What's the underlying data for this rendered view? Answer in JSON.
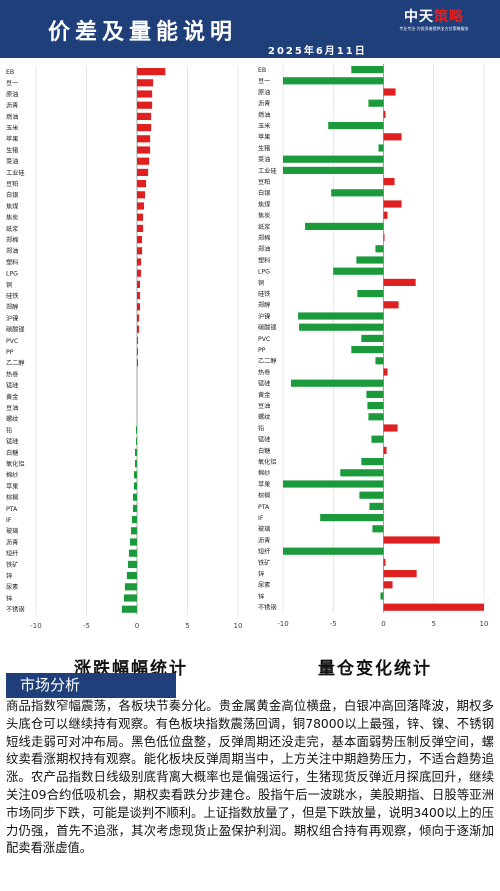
{
  "header": {
    "title": "价差及量能说明",
    "date": "2025年6月11日"
  },
  "logo": {
    "text_a": "中天",
    "text_b": "策略",
    "tagline": "专业专注·为投资者提供全方位策略服务"
  },
  "captions": {
    "left": "涨跌幅幅统计",
    "right": "量仓变化统计"
  },
  "analysis": {
    "heading": "市场分析",
    "body": "商品指数窄幅震荡，各板块节奏分化。贵金属黄金高位横盘，白银冲高回落降波，期权多头底仓可以继续持有观察。有色板块指数震荡回调，铜78000以上最强，锌、镍、不锈钢短线走弱可对冲布局。黑色低位盘整，反弹周期还没走完，基本面弱势压制反弹空间，螺纹卖看涨期权持有观察。能化板块反弹周期当中，上方关注中期趋势压力，不适合趋势追涨。农产品指数日线级别底背离大概率也是偏强运行，生猪现货反弹近月探底回升，继续关注09合约低吸机会，期权卖看跌分步建仓。股指午后一波跳水，美股期指、日股等亚洲市场同步下跌，可能是谈判不顺利。上证指数放量了，但是下跌放量，说明3400以上的压力仍强，首先不追涨，其次考虑现货止盈保护利润。期权组合持有再观察，倾向于逐渐加配卖看涨虚值。"
  },
  "colors": {
    "header": "#1f3f7a",
    "up": "#e02020",
    "down": "#1a9a3a"
  },
  "chart_data": [
    {
      "type": "bar",
      "orientation": "horizontal",
      "caption": "涨跌幅幅统计",
      "categories": [
        "EB",
        "豆一",
        "原油",
        "沥青",
        "燃油",
        "玉米",
        "苹果",
        "生猪",
        "菜油",
        "工业硅",
        "豆粕",
        "白银",
        "焦煤",
        "焦炭",
        "纸浆",
        "郑棉",
        "郑油",
        "塑料",
        "LPG",
        "铜",
        "硅铁",
        "郑醇",
        "沪镍",
        "碳酸锂",
        "PVC",
        "PP",
        "乙二醇",
        "热卷",
        "锰硅",
        "黄金",
        "豆油",
        "螺纹",
        "铅",
        "锰硅",
        "白糖",
        "氧化铝",
        "棉纱",
        "苹果",
        "棕榈",
        "PTA",
        "IF",
        "玻璃",
        "沥青",
        "短纤",
        "铁矿",
        "锌",
        "尿素",
        "锌",
        "不锈钢"
      ],
      "values": [
        2.8,
        1.6,
        1.5,
        1.5,
        1.4,
        1.4,
        1.3,
        1.3,
        1.2,
        1.1,
        0.9,
        0.8,
        0.7,
        0.6,
        0.6,
        0.5,
        0.5,
        0.4,
        0.4,
        0.3,
        0.3,
        0.3,
        0.2,
        0.2,
        0.1,
        0.1,
        0.1,
        0,
        0,
        0,
        0,
        0,
        -0.1,
        -0.1,
        -0.2,
        -0.2,
        -0.3,
        -0.3,
        -0.4,
        -0.4,
        -0.5,
        -0.6,
        -0.7,
        -0.8,
        -0.9,
        -1.0,
        -1.2,
        -1.3,
        -1.5
      ],
      "xlim": [
        -10,
        10
      ],
      "xticks": [
        "-10",
        "-5",
        "0",
        "5",
        "10"
      ]
    },
    {
      "type": "bar",
      "orientation": "horizontal",
      "caption": "量仓变化统计",
      "categories": [
        "EB",
        "豆一",
        "原油",
        "沥青",
        "燃油",
        "玉米",
        "苹果",
        "生猪",
        "菜油",
        "工业硅",
        "豆粕",
        "白银",
        "焦煤",
        "焦炭",
        "纸浆",
        "郑棉",
        "郑油",
        "塑料",
        "LPG",
        "铜",
        "硅铁",
        "郑醇",
        "沪镍",
        "碳酸锂",
        "PVC",
        "PP",
        "乙二醇",
        "热卷",
        "锰硅",
        "黄金",
        "豆油",
        "螺纹",
        "铅",
        "锰硅",
        "白糖",
        "氧化铝",
        "棉纱",
        "苹果",
        "棕榈",
        "PTA",
        "IF",
        "玻璃",
        "沥青",
        "短纤",
        "铁矿",
        "锌",
        "尿素",
        "锌",
        "不锈钢"
      ],
      "values": [
        -3.2,
        -10,
        1.2,
        -1.5,
        0.2,
        -5.5,
        1.8,
        -0.5,
        -10,
        -10,
        1.1,
        -5.2,
        1.8,
        0.4,
        -7.8,
        0.1,
        -0.8,
        -2.7,
        -5,
        3.2,
        -2.6,
        1.5,
        -8.5,
        -8.4,
        -2.2,
        -3.2,
        -0.8,
        0.4,
        -9.2,
        -1.7,
        -1.6,
        -1.5,
        1.4,
        -1.2,
        0.3,
        -2.2,
        -4.3,
        -10,
        -2.4,
        -1.4,
        -6.3,
        -1.1,
        5.6,
        -10,
        0.2,
        3.3,
        0.9,
        -0.3,
        10
      ],
      "xlim": [
        -10,
        10
      ],
      "xticks": [
        "-10",
        "-5",
        "0",
        "5",
        "10"
      ]
    }
  ]
}
